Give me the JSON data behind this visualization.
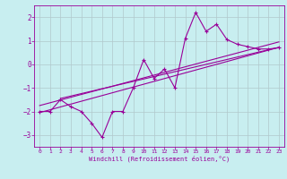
{
  "xlabel": "Windchill (Refroidissement éolien,°C)",
  "background_color": "#c8eef0",
  "grid_color": "#b0c8cc",
  "line_color": "#990099",
  "xlim": [
    -0.5,
    23.5
  ],
  "ylim": [
    -3.5,
    2.5
  ],
  "yticks": [
    -3,
    -2,
    -1,
    0,
    1,
    2
  ],
  "xticks": [
    0,
    1,
    2,
    3,
    4,
    5,
    6,
    7,
    8,
    9,
    10,
    11,
    12,
    13,
    14,
    15,
    16,
    17,
    18,
    19,
    20,
    21,
    22,
    23
  ],
  "data_x": [
    0,
    1,
    2,
    3,
    4,
    5,
    6,
    7,
    8,
    9,
    10,
    11,
    12,
    13,
    14,
    15,
    16,
    17,
    18,
    19,
    20,
    21,
    22,
    23
  ],
  "data_y": [
    -2.0,
    -2.0,
    -1.5,
    -1.8,
    -2.0,
    -2.5,
    -3.1,
    -2.0,
    -2.0,
    -1.0,
    0.2,
    -0.6,
    -0.2,
    -1.0,
    1.1,
    2.2,
    1.4,
    1.7,
    1.05,
    0.85,
    0.75,
    0.65,
    0.65,
    0.7
  ],
  "line1_x": [
    0,
    23
  ],
  "line1_y": [
    -2.05,
    0.72
  ],
  "line2_x": [
    0,
    23
  ],
  "line2_y": [
    -1.75,
    0.95
  ],
  "line3_x": [
    2,
    23
  ],
  "line3_y": [
    -1.45,
    0.72
  ]
}
